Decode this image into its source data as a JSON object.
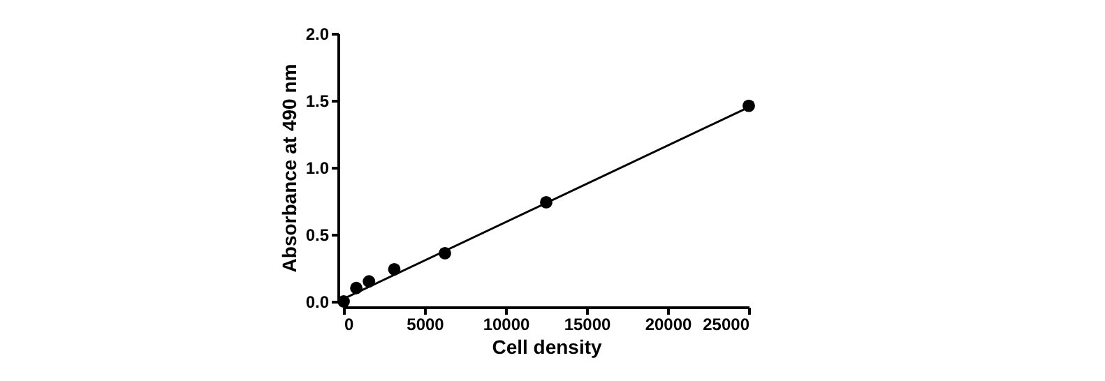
{
  "chart_data": {
    "type": "scatter",
    "xlabel": "Cell density",
    "ylabel": "Absorbance at 490 nm",
    "x": [
      0,
      781,
      1562,
      3125,
      6250,
      12500,
      25000
    ],
    "series": [
      {
        "color": "#000000",
        "values": [
          0,
          0.1,
          0.15,
          0.24,
          0.36,
          0.74,
          1.46
        ],
        "marker": "circle"
      },
      {
        "type": "line",
        "color": "#000000",
        "x": [
          0,
          25000
        ],
        "values": [
          0.02,
          1.45
        ],
        "marker": "none"
      }
    ],
    "xlim": [
      0,
      25000
    ],
    "ylim": [
      0,
      2
    ],
    "xticks": [
      0,
      5000,
      10000,
      15000,
      20000,
      25000
    ],
    "yticks": [
      {
        "value": 0,
        "label": "0.0"
      },
      0.5,
      {
        "value": 1,
        "label": "1.0"
      },
      1.5,
      {
        "value": 2,
        "label": "2.0"
      }
    ],
    "grid": false
  }
}
